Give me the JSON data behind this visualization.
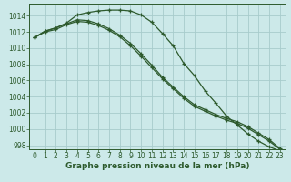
{
  "title": "Graphe pression niveau de la mer (hPa)",
  "background_color": "#cce9e9",
  "grid_color": "#a8cccc",
  "line_color": "#2d5a2d",
  "xlim": [
    -0.5,
    23.5
  ],
  "ylim": [
    997.5,
    1015.5
  ],
  "yticks": [
    998,
    1000,
    1002,
    1004,
    1006,
    1008,
    1010,
    1012,
    1014
  ],
  "xticks": [
    0,
    1,
    2,
    3,
    4,
    5,
    6,
    7,
    8,
    9,
    10,
    11,
    12,
    13,
    14,
    15,
    16,
    17,
    18,
    19,
    20,
    21,
    22,
    23
  ],
  "series": [
    [
      1011.3,
      1012.1,
      1012.5,
      1013.1,
      1014.1,
      1014.4,
      1014.6,
      1014.7,
      1014.7,
      1014.6,
      1014.1,
      1013.2,
      1011.8,
      1010.3,
      1008.1,
      1006.6,
      1004.7,
      1003.2,
      1001.6,
      1000.5,
      999.4,
      998.5,
      997.8,
      997.3
    ],
    [
      1011.3,
      1012.1,
      1012.5,
      1013.0,
      1013.5,
      1013.4,
      1013.0,
      1012.4,
      1011.6,
      1010.6,
      1009.3,
      1007.9,
      1006.4,
      1005.2,
      1004.0,
      1003.0,
      1002.4,
      1001.8,
      1001.3,
      1000.9,
      1000.3,
      999.5,
      998.7,
      997.6
    ],
    [
      1011.3,
      1012.0,
      1012.3,
      1012.9,
      1013.3,
      1013.2,
      1012.8,
      1012.2,
      1011.4,
      1010.3,
      1009.0,
      1007.6,
      1006.2,
      1005.0,
      1003.8,
      1002.8,
      1002.2,
      1001.6,
      1001.1,
      1000.7,
      1000.1,
      999.3,
      998.5,
      997.5
    ]
  ],
  "title_fontsize": 6.5,
  "tick_fontsize": 5.5,
  "tick_color": "#2d5a2d"
}
